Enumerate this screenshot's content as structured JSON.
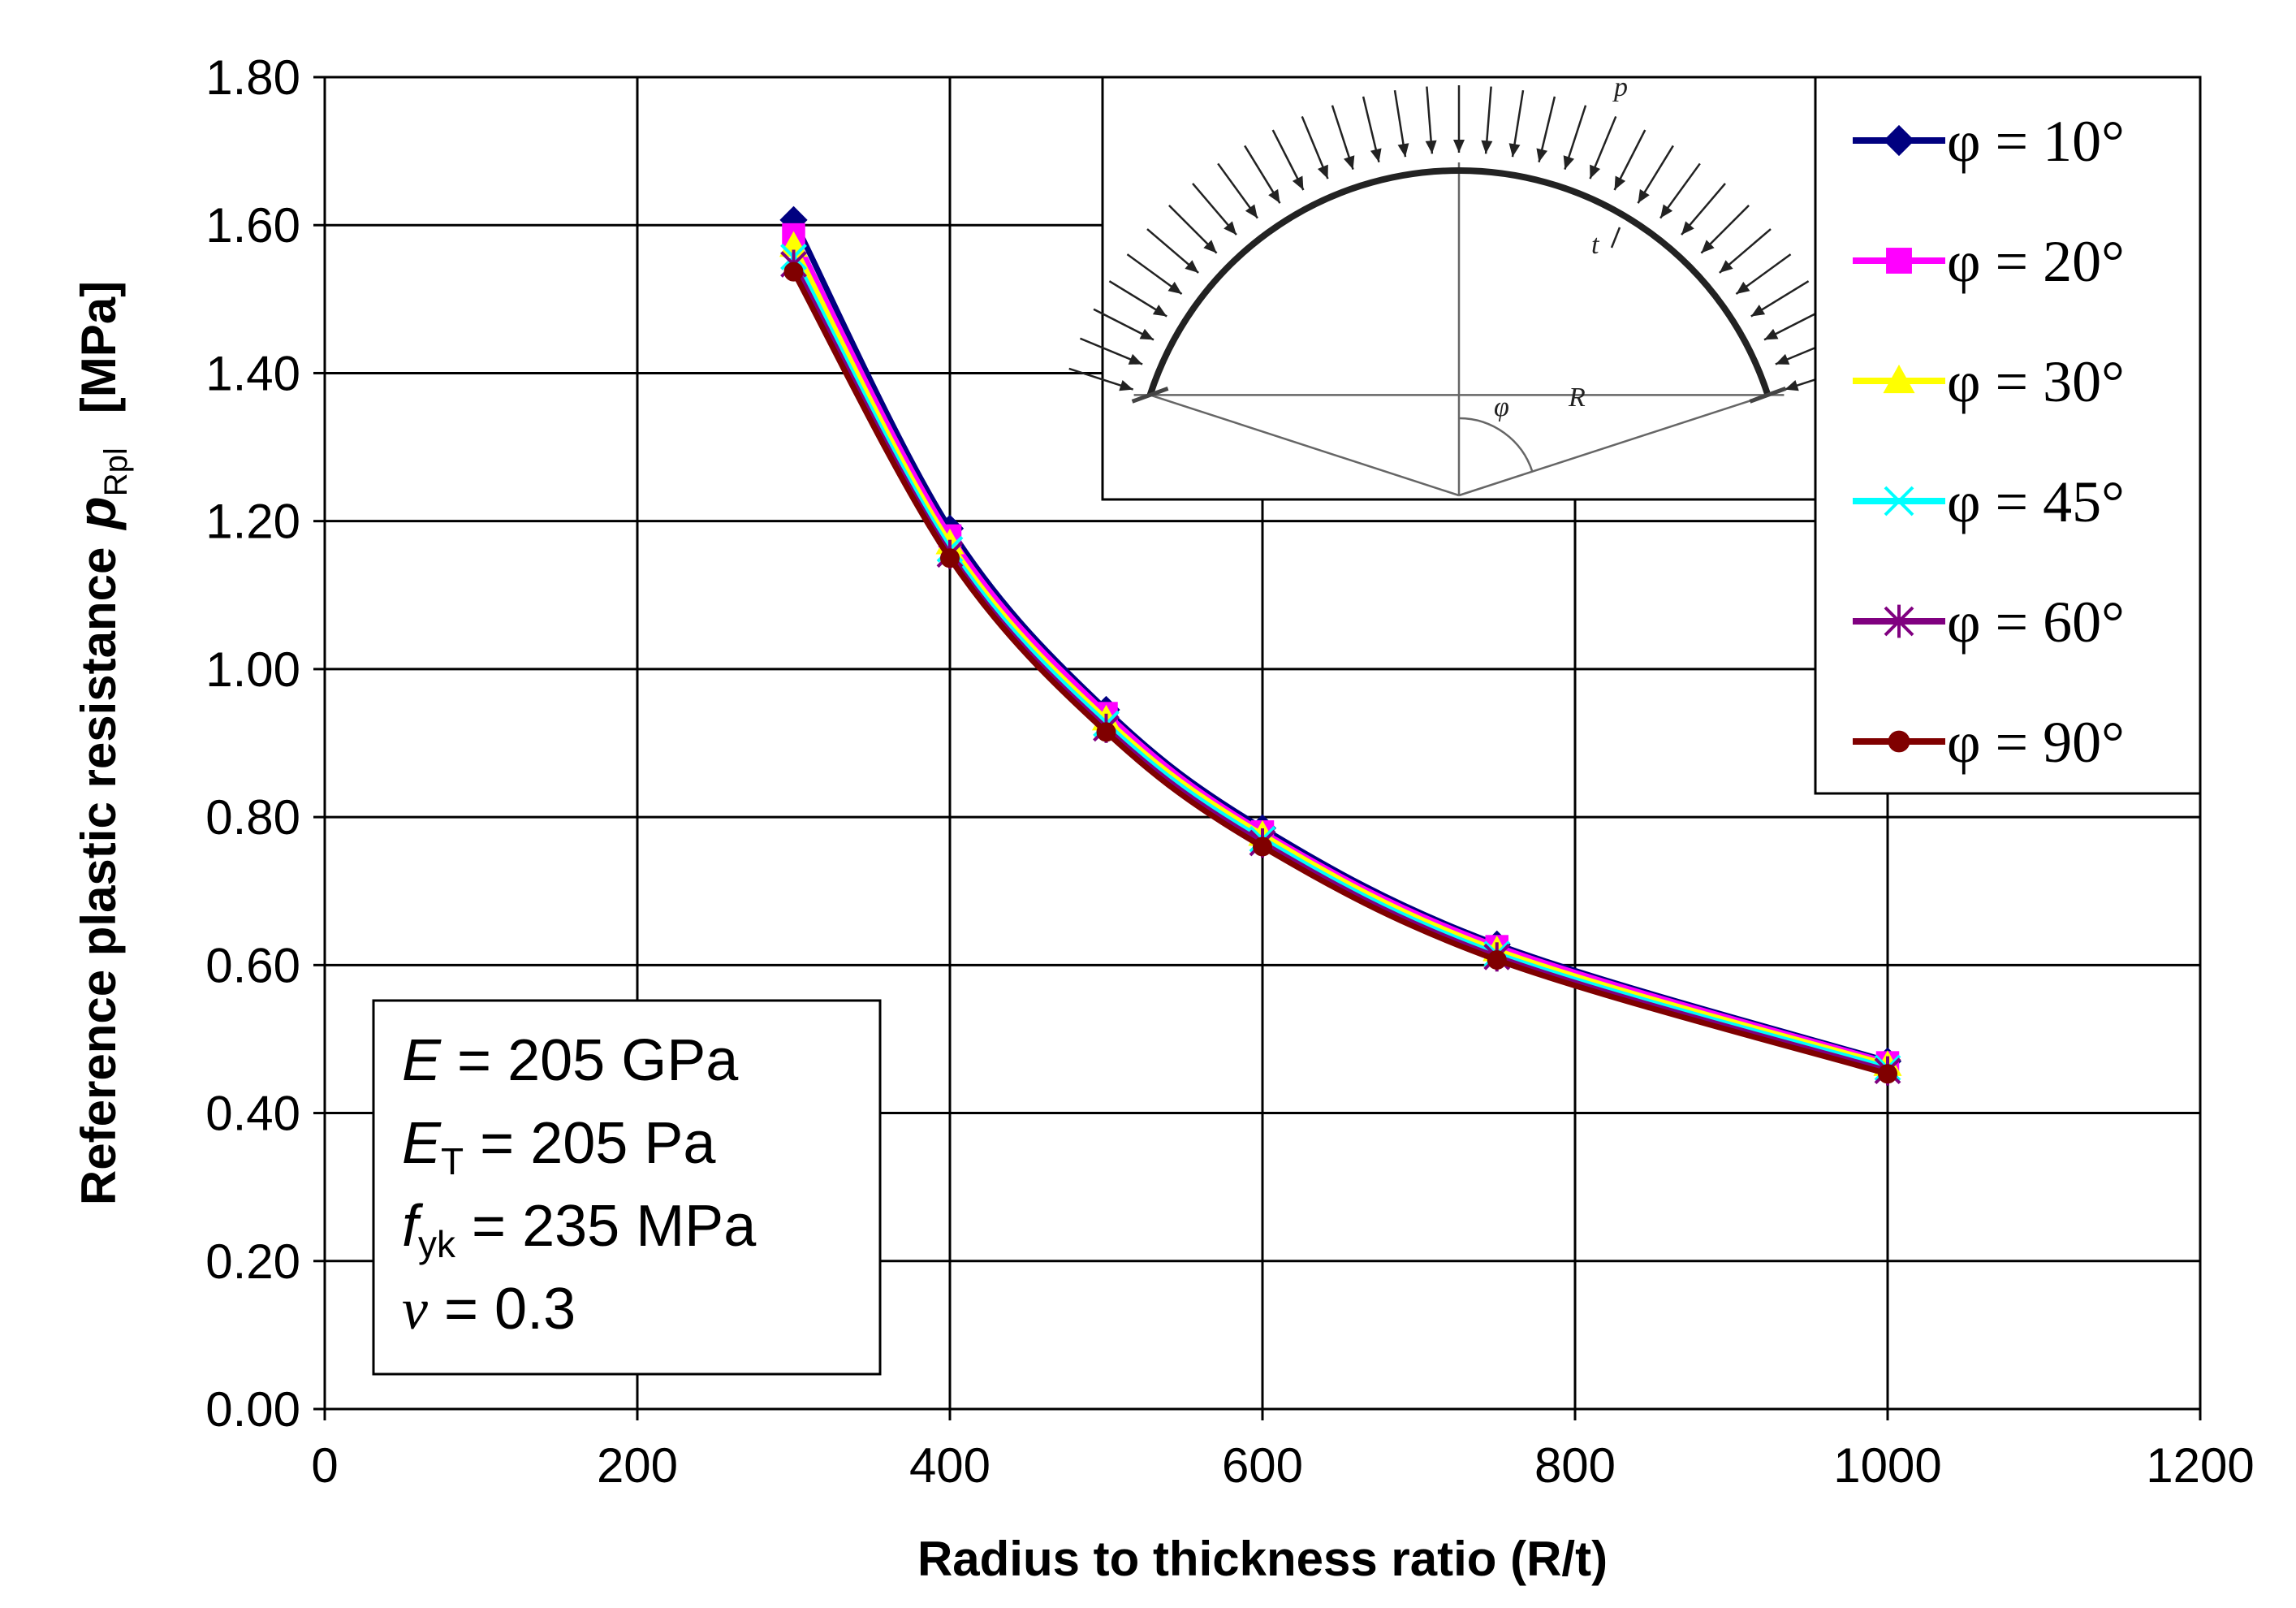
{
  "chart_data": {
    "type": "line",
    "title": "",
    "xlabel": "Radius to thickness ratio (R/t)",
    "ylabel": {
      "main": "Reference plastic resistance",
      "symbol": "p",
      "subscript": "Rpl",
      "unit": "[MPa]"
    },
    "xlim": [
      0,
      1200
    ],
    "ylim": [
      0,
      1.8
    ],
    "x_ticks": [
      "0",
      "200",
      "400",
      "600",
      "800",
      "1000",
      "1200"
    ],
    "x_tick_values": [
      0,
      200,
      400,
      600,
      800,
      1000,
      1200
    ],
    "y_ticks": [
      "0.00",
      "0.20",
      "0.40",
      "0.60",
      "0.80",
      "1.00",
      "1.20",
      "1.40",
      "1.60",
      "1.80"
    ],
    "y_tick_values": [
      0,
      0.2,
      0.4,
      0.6,
      0.8,
      1.0,
      1.2,
      1.4,
      1.6,
      1.8
    ],
    "grid": true,
    "legend_position": "top-right",
    "x": [
      300,
      400,
      500,
      600,
      750,
      1000
    ],
    "series": [
      {
        "name": "φ = 10°",
        "color": "#000080",
        "marker": "diamond",
        "values": [
          1.607,
          1.19,
          0.945,
          0.785,
          0.628,
          0.47
        ]
      },
      {
        "name": "φ = 20°",
        "color": "#ff00ff",
        "marker": "square",
        "values": [
          1.587,
          1.18,
          0.94,
          0.78,
          0.625,
          0.468
        ]
      },
      {
        "name": "φ = 30°",
        "color": "#ffff00",
        "marker": "triangle",
        "values": [
          1.572,
          1.17,
          0.932,
          0.776,
          0.62,
          0.465
        ]
      },
      {
        "name": "φ = 45°",
        "color": "#00ffff",
        "marker": "x",
        "values": [
          1.557,
          1.162,
          0.926,
          0.77,
          0.615,
          0.461
        ]
      },
      {
        "name": "φ = 60°",
        "color": "#800080",
        "marker": "star",
        "values": [
          1.547,
          1.155,
          0.92,
          0.765,
          0.611,
          0.457
        ]
      },
      {
        "name": "φ = 90°",
        "color": "#800000",
        "marker": "circle",
        "values": [
          1.537,
          1.15,
          0.915,
          0.76,
          0.607,
          0.453
        ]
      }
    ],
    "parameters": [
      {
        "symbol": "E",
        "sub": "",
        "text": " = 205 GPa"
      },
      {
        "symbol": "E",
        "sub": "T",
        "text": " = 205 Pa"
      },
      {
        "symbol": "f",
        "sub": "yk",
        "text": " = 235 MPa"
      },
      {
        "symbol": "ν",
        "sub": "",
        "text": " = 0.3"
      }
    ],
    "inset": {
      "description_labels": [
        "p",
        "t",
        "φ",
        "R"
      ]
    }
  }
}
